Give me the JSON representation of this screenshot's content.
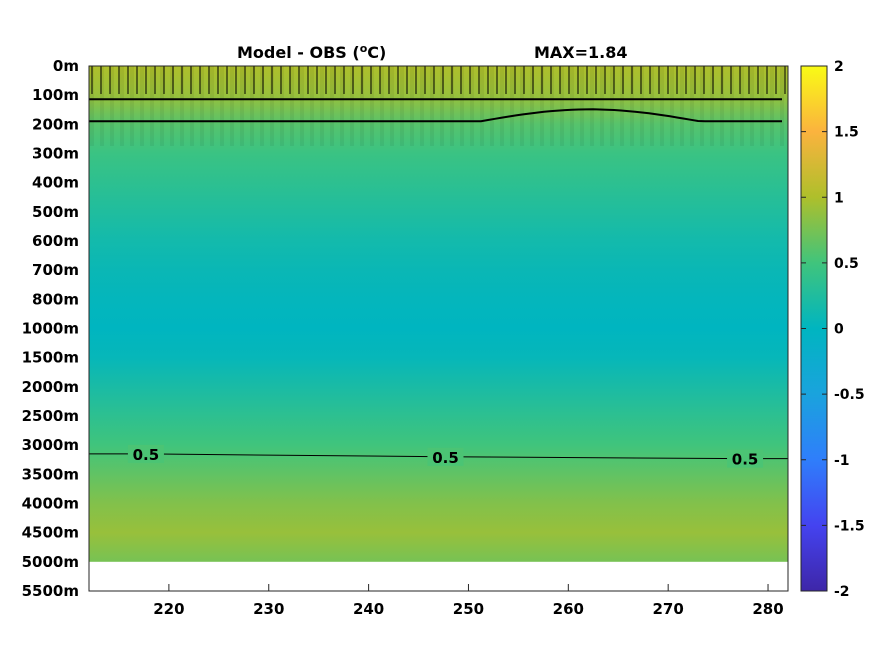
{
  "chart_data": {
    "type": "heatmap",
    "title_left": "Model - OBS (",
    "title_unit_sup": "o",
    "title_unit_end": "C)",
    "title_right": "MAX=1.84",
    "x_ticks": [
      "220",
      "230",
      "240",
      "250",
      "260",
      "270",
      "280"
    ],
    "x_tick_values": [
      220,
      230,
      240,
      250,
      260,
      270,
      280
    ],
    "xlim": [
      212,
      282
    ],
    "y_ticks": [
      "0m",
      "100m",
      "200m",
      "300m",
      "400m",
      "500m",
      "600m",
      "700m",
      "800m",
      "1000m",
      "1500m",
      "2000m",
      "2500m",
      "3000m",
      "3500m",
      "4000m",
      "4500m",
      "5000m",
      "5500m"
    ],
    "y_depths": [
      0,
      100,
      200,
      300,
      400,
      500,
      600,
      700,
      800,
      1000,
      1500,
      2000,
      2500,
      3000,
      3500,
      4000,
      4500,
      5000,
      5500
    ],
    "data_bottom_depth": 5000,
    "colorbar": {
      "ticks": [
        "2",
        "1.5",
        "1",
        "0.5",
        "0",
        "-0.5",
        "-1",
        "-1.5",
        "-2"
      ],
      "tick_values": [
        2,
        1.5,
        1,
        0.5,
        0,
        -0.5,
        -1,
        -1.5,
        -2
      ],
      "range": [
        -2,
        2
      ],
      "colormap": "parula"
    },
    "depth_profile": [
      {
        "depth": 0,
        "value": 1.0
      },
      {
        "depth": 100,
        "value": 0.9
      },
      {
        "depth": 200,
        "value": 0.6
      },
      {
        "depth": 300,
        "value": 0.45
      },
      {
        "depth": 400,
        "value": 0.35
      },
      {
        "depth": 500,
        "value": 0.25
      },
      {
        "depth": 600,
        "value": 0.15
      },
      {
        "depth": 700,
        "value": 0.08
      },
      {
        "depth": 800,
        "value": 0.03
      },
      {
        "depth": 1000,
        "value": 0.0
      },
      {
        "depth": 1500,
        "value": 0.05
      },
      {
        "depth": 2000,
        "value": 0.2
      },
      {
        "depth": 2500,
        "value": 0.35
      },
      {
        "depth": 3000,
        "value": 0.5
      },
      {
        "depth": 3500,
        "value": 0.65
      },
      {
        "depth": 4000,
        "value": 0.8
      },
      {
        "depth": 4500,
        "value": 0.9
      },
      {
        "depth": 5000,
        "value": 0.75
      }
    ],
    "contour_labels": [
      {
        "x": 217.7,
        "depth": 3150,
        "text": "0.5"
      },
      {
        "x": 247.7,
        "depth": 3200,
        "text": "0.5"
      },
      {
        "x": 277.7,
        "depth": 3230,
        "text": "0.5"
      }
    ],
    "grid": false
  }
}
